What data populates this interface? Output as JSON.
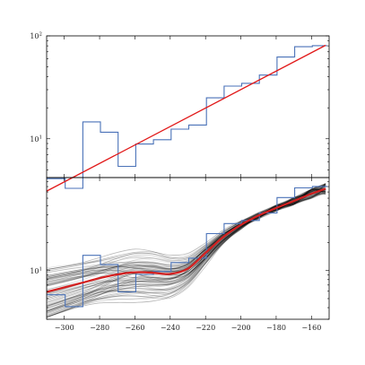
{
  "chart_data": [
    {
      "type": "line",
      "title": "",
      "xlabel": "",
      "ylabel": "",
      "xlim": [
        -310,
        -150
      ],
      "ylim": [
        4.2,
        100
      ],
      "yscale": "log",
      "grid": false,
      "y_tick_labels": [
        {
          "value": 100,
          "base": "10",
          "exp": "2"
        },
        {
          "value": 10,
          "base": "10",
          "exp": "1"
        }
      ],
      "series": [
        {
          "kind": "step-histogram",
          "color": "#4a72b8",
          "bin_edges": [
            -310,
            -299.5,
            -289.5,
            -279.5,
            -269.5,
            -259.5,
            -249.5,
            -239.5,
            -229.5,
            -219.5,
            -209.5,
            -199.5,
            -189.5,
            -179.5,
            -169.5,
            -159.5,
            -151
          ],
          "values": [
            4.1,
            3.3,
            14.6,
            11.6,
            5.4,
            8.9,
            9.8,
            12.4,
            13.6,
            25.0,
            32.5,
            34.6,
            41.6,
            62.3,
            78.5,
            80.3
          ]
        },
        {
          "kind": "fit-line",
          "color": "#e11919",
          "x": [
            -310,
            -152
          ],
          "y": [
            3.1,
            81
          ]
        }
      ]
    },
    {
      "type": "line",
      "title": "",
      "xlabel": "",
      "ylabel": "",
      "xlim": [
        -310,
        -150
      ],
      "ylim": [
        3.0,
        100
      ],
      "yscale": "log",
      "grid": false,
      "x_tick_labels": [
        "−300",
        "−280",
        "−260",
        "−240",
        "−220",
        "−200",
        "−180",
        "−160"
      ],
      "x_tick_values": [
        -300,
        -280,
        -260,
        -240,
        -220,
        -200,
        -180,
        -160
      ],
      "y_tick_labels": [
        {
          "value": 10,
          "base": "10",
          "exp": "1"
        }
      ],
      "series": [
        {
          "kind": "step-histogram",
          "color": "#4a72b8",
          "bin_edges": [
            -310,
            -299.5,
            -289.5,
            -279.5,
            -269.5,
            -259.5,
            -249.5,
            -239.5,
            -229.5,
            -219.5,
            -209.5,
            -199.5,
            -189.5,
            -179.5,
            -169.5,
            -159.5,
            -151
          ],
          "values": [
            5.5,
            4.1,
            14.6,
            11.6,
            5.9,
            9.1,
            9.8,
            12.2,
            13.6,
            25.0,
            32.0,
            34.6,
            41.6,
            60.9,
            77.4,
            80.3
          ]
        },
        {
          "kind": "ensemble-curves",
          "color": "#000000",
          "count": 80
        },
        {
          "kind": "best-fit-curve",
          "color": "#d42020",
          "x": [
            -310,
            -300,
            -290,
            -280,
            -270,
            -260,
            -250,
            -240,
            -230,
            -220,
            -210,
            -200,
            -190,
            -180,
            -170,
            -160,
            -152
          ],
          "y": [
            5.9,
            6.6,
            7.4,
            8.3,
            9.1,
            9.6,
            9.5,
            9.2,
            10.5,
            15.5,
            23.0,
            31.0,
            39.0,
            47.0,
            56.0,
            67.0,
            76.0
          ]
        }
      ]
    }
  ]
}
